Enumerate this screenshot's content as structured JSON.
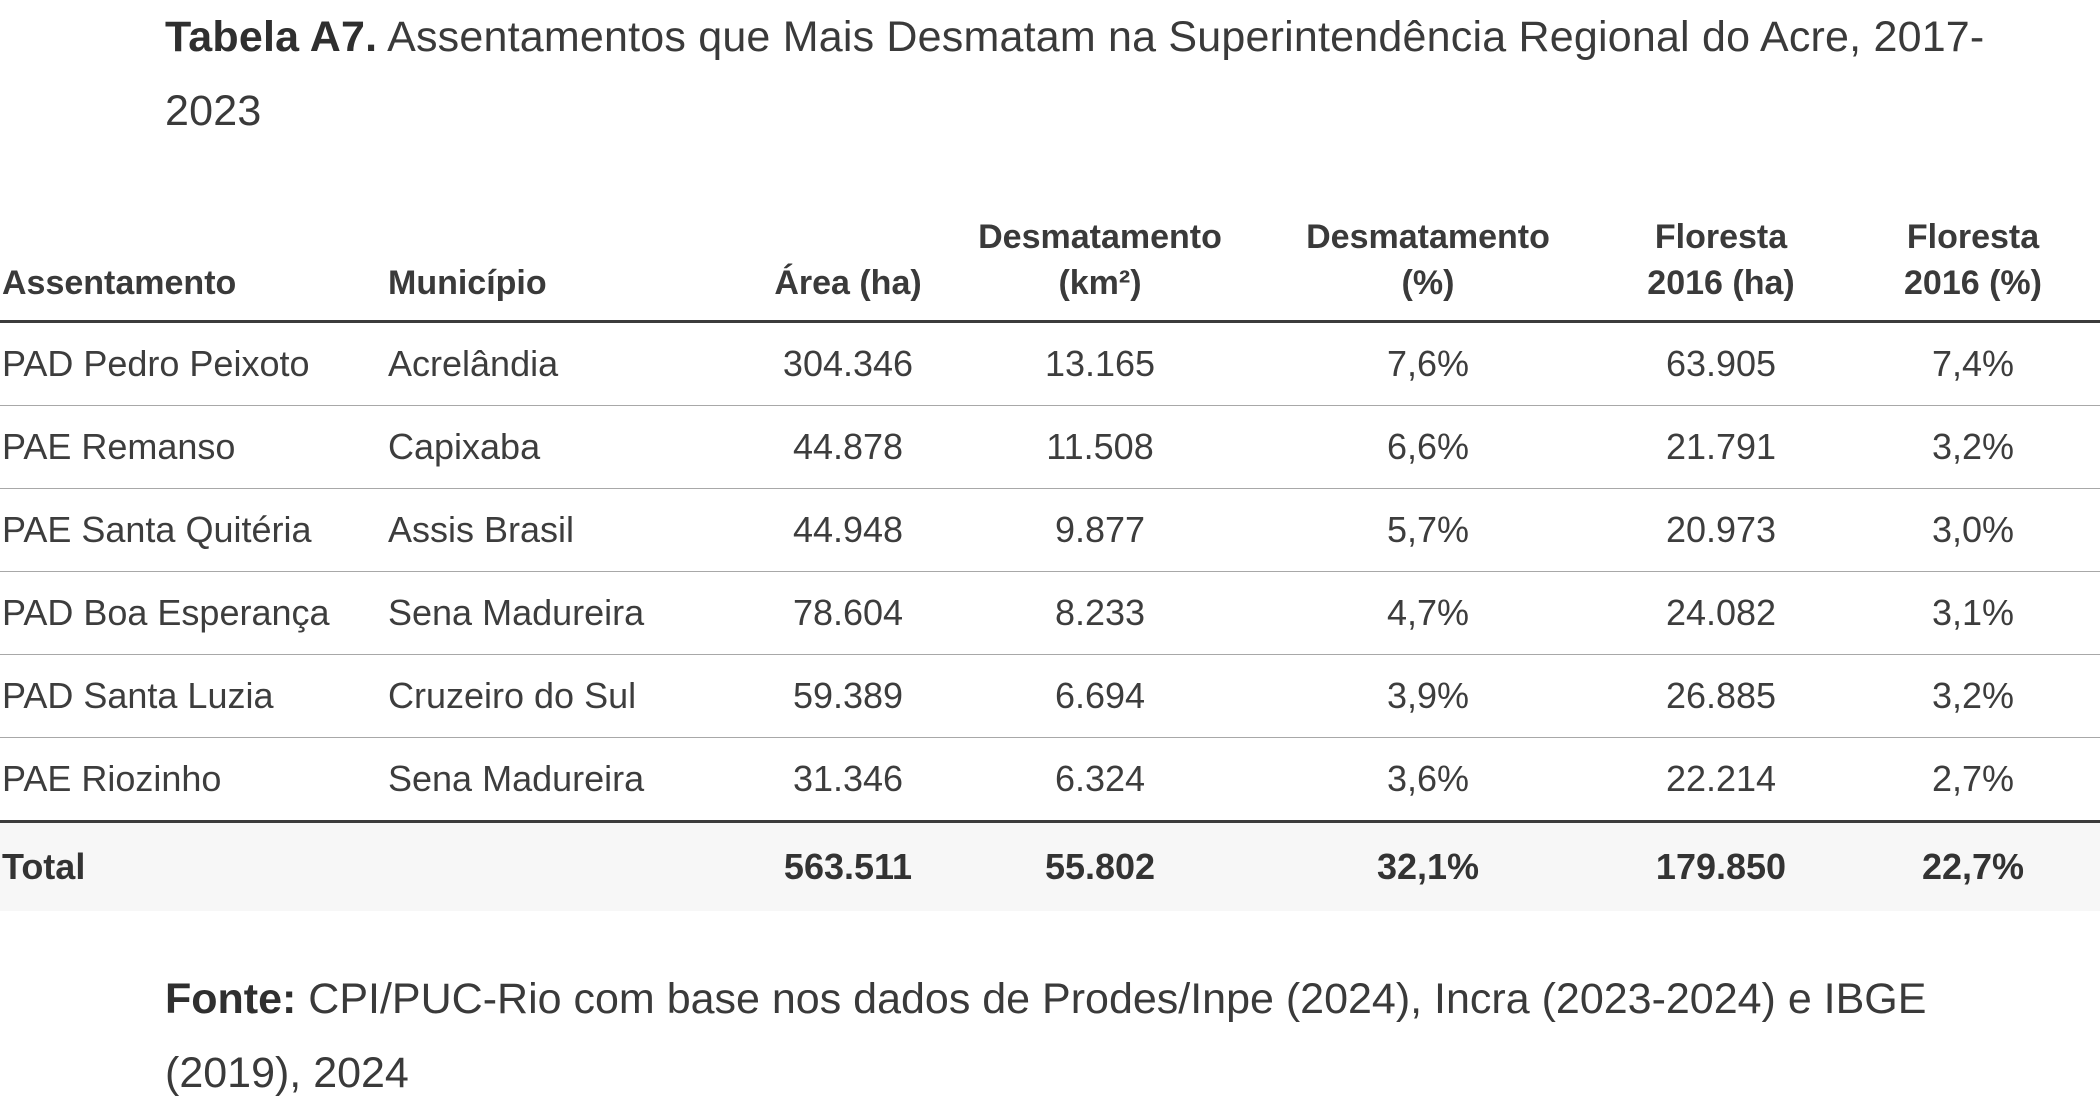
{
  "title": {
    "lead": "Tabela A7.",
    "text": " Assentamentos que Mais Desmatam na Superintendência Regional do Acre, 2017-2023"
  },
  "table": {
    "headers": {
      "assentamento": "Assentamento",
      "municipio": "Município",
      "area": "Área (ha)",
      "desm_km2_line1": "Desmatamento",
      "desm_km2_line2": "(km²)",
      "desm_pct_line1": "Desmatamento",
      "desm_pct_line2": "(%)",
      "floresta_ha_line1": "Floresta",
      "floresta_ha_line2": "2016 (ha)",
      "floresta_pct_line1": "Floresta",
      "floresta_pct_line2": "2016 (%)"
    },
    "rows": [
      {
        "assentamento": "PAD Pedro Peixoto",
        "municipio": "Acrelândia",
        "area": "304.346",
        "desm_km2": "13.165",
        "desm_pct": "7,6%",
        "floresta_ha": "63.905",
        "floresta_pct": "7,4%"
      },
      {
        "assentamento": "PAE Remanso",
        "municipio": "Capixaba",
        "area": "44.878",
        "desm_km2": "11.508",
        "desm_pct": "6,6%",
        "floresta_ha": "21.791",
        "floresta_pct": "3,2%"
      },
      {
        "assentamento": "PAE Santa Quitéria",
        "municipio": "Assis Brasil",
        "area": "44.948",
        "desm_km2": "9.877",
        "desm_pct": "5,7%",
        "floresta_ha": "20.973",
        "floresta_pct": "3,0%"
      },
      {
        "assentamento": "PAD Boa Esperança",
        "municipio": "Sena Madureira",
        "area": "78.604",
        "desm_km2": "8.233",
        "desm_pct": "4,7%",
        "floresta_ha": "24.082",
        "floresta_pct": "3,1%"
      },
      {
        "assentamento": "PAD Santa Luzia",
        "municipio": "Cruzeiro do Sul",
        "area": "59.389",
        "desm_km2": "6.694",
        "desm_pct": "3,9%",
        "floresta_ha": "26.885",
        "floresta_pct": "3,2%"
      },
      {
        "assentamento": "PAE Riozinho",
        "municipio": "Sena Madureira",
        "area": "31.346",
        "desm_km2": "6.324",
        "desm_pct": "3,6%",
        "floresta_ha": "22.214",
        "floresta_pct": "2,7%"
      }
    ],
    "total": {
      "label": "Total",
      "area": "563.511",
      "desm_km2": "55.802",
      "desm_pct": "32,1%",
      "floresta_ha": "179.850",
      "floresta_pct": "22,7%"
    }
  },
  "source": {
    "lead": "Fonte:",
    "text": " CPI/PUC-Rio com base nos dados de Prodes/Inpe (2024), Incra (2023-2024) e IBGE (2019), 2024"
  }
}
